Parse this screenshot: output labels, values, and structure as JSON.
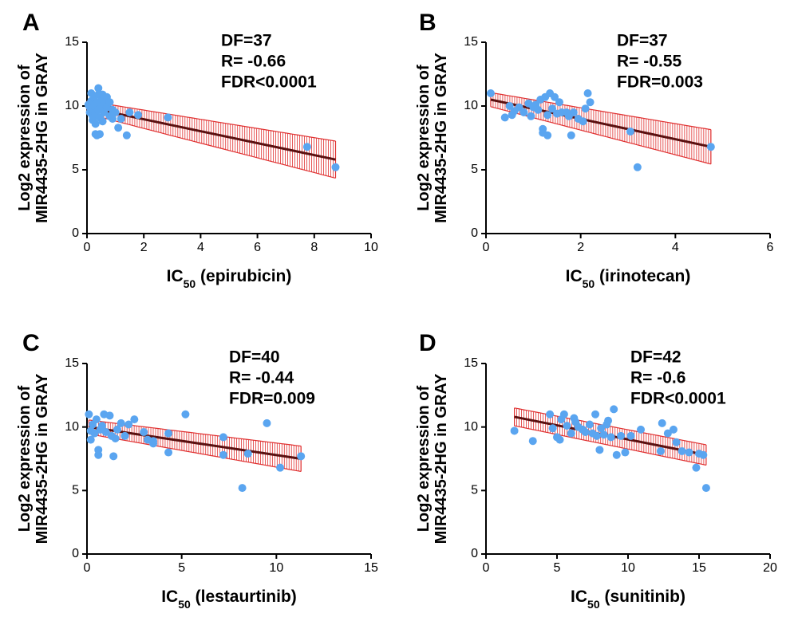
{
  "chart_data": [
    {
      "panel": "A",
      "type": "scatter",
      "xlabel_main": "IC",
      "xlabel_sub": "50",
      "xlabel_rest": " (epirubicin)",
      "ylabel_line1": "Log2 expression of",
      "ylabel_line2": "MIR4435-2HG in GRAY",
      "xlim": [
        0,
        10
      ],
      "xticks": [
        0,
        2,
        4,
        6,
        8,
        10
      ],
      "ylim": [
        0,
        15
      ],
      "yticks": [
        0,
        5,
        10,
        15
      ],
      "stats": [
        "DF=37",
        "R= -0.66",
        "FDR<0.0001"
      ],
      "fit": {
        "x1": 0.0,
        "y1": 9.9,
        "x2": 8.75,
        "y2": 5.8,
        "band1": 0.5,
        "band2": 1.45
      },
      "points": [
        [
          0.05,
          10.1
        ],
        [
          0.1,
          9.9
        ],
        [
          0.1,
          9.5
        ],
        [
          0.15,
          11.0
        ],
        [
          0.15,
          10.4
        ],
        [
          0.2,
          9.8
        ],
        [
          0.2,
          9.2
        ],
        [
          0.2,
          8.9
        ],
        [
          0.25,
          10.6
        ],
        [
          0.25,
          10.0
        ],
        [
          0.3,
          9.4
        ],
        [
          0.3,
          8.6
        ],
        [
          0.3,
          7.8
        ],
        [
          0.35,
          7.7
        ],
        [
          0.35,
          10.2
        ],
        [
          0.4,
          11.4
        ],
        [
          0.4,
          10.9
        ],
        [
          0.4,
          9.7
        ],
        [
          0.45,
          9.1
        ],
        [
          0.45,
          7.8
        ],
        [
          0.5,
          10.4
        ],
        [
          0.5,
          9.9
        ],
        [
          0.55,
          10.9
        ],
        [
          0.55,
          8.8
        ],
        [
          0.6,
          10.2
        ],
        [
          0.6,
          9.5
        ],
        [
          0.7,
          10.7
        ],
        [
          0.7,
          9.9
        ],
        [
          0.8,
          10.3
        ],
        [
          0.8,
          9.2
        ],
        [
          0.9,
          9.7
        ],
        [
          0.9,
          9.0
        ],
        [
          1.0,
          9.5
        ],
        [
          1.1,
          8.3
        ],
        [
          1.2,
          9.0
        ],
        [
          1.4,
          7.7
        ],
        [
          1.5,
          9.5
        ],
        [
          1.8,
          9.3
        ],
        [
          2.85,
          9.1
        ],
        [
          7.75,
          6.8
        ],
        [
          8.75,
          5.2
        ]
      ]
    },
    {
      "panel": "B",
      "type": "scatter",
      "xlabel_main": "IC",
      "xlabel_sub": "50",
      "xlabel_rest": " (irinotecan)",
      "ylabel_line1": "Log2 expression of",
      "ylabel_line2": "MIR4435-2HG in GRAY",
      "xlim": [
        0,
        6
      ],
      "xticks": [
        0,
        2,
        4,
        6
      ],
      "ylim": [
        0,
        15
      ],
      "yticks": [
        0,
        5,
        10,
        15
      ],
      "stats": [
        "DF=37",
        "R= -0.55",
        "FDR=0.003"
      ],
      "fit": {
        "x1": 0.1,
        "y1": 10.5,
        "x2": 4.75,
        "y2": 6.8,
        "band1": 0.55,
        "band2": 1.35
      },
      "points": [
        [
          0.1,
          11.0
        ],
        [
          0.4,
          9.1
        ],
        [
          0.5,
          10.0
        ],
        [
          0.55,
          9.3
        ],
        [
          0.6,
          9.6
        ],
        [
          0.7,
          9.9
        ],
        [
          0.8,
          9.5
        ],
        [
          0.9,
          10.2
        ],
        [
          0.95,
          9.2
        ],
        [
          1.0,
          9.9
        ],
        [
          1.05,
          10.1
        ],
        [
          1.1,
          9.7
        ],
        [
          1.15,
          10.5
        ],
        [
          1.2,
          8.2
        ],
        [
          1.2,
          7.9
        ],
        [
          1.25,
          10.7
        ],
        [
          1.3,
          7.7
        ],
        [
          1.3,
          9.3
        ],
        [
          1.35,
          11.0
        ],
        [
          1.4,
          9.8
        ],
        [
          1.45,
          10.7
        ],
        [
          1.5,
          9.4
        ],
        [
          1.55,
          10.3
        ],
        [
          1.6,
          9.5
        ],
        [
          1.7,
          9.5
        ],
        [
          1.75,
          9.2
        ],
        [
          1.8,
          7.7
        ],
        [
          1.85,
          9.5
        ],
        [
          1.95,
          9.0
        ],
        [
          2.05,
          8.8
        ],
        [
          2.1,
          9.8
        ],
        [
          2.15,
          11.0
        ],
        [
          2.2,
          10.3
        ],
        [
          3.05,
          8.0
        ],
        [
          3.2,
          5.2
        ],
        [
          4.75,
          6.8
        ]
      ]
    },
    {
      "panel": "C",
      "type": "scatter",
      "xlabel_main": "IC",
      "xlabel_sub": "50",
      "xlabel_rest": " (lestaurtinib)",
      "ylabel_line1": "Log2 expression of",
      "ylabel_line2": "MIR4435-2HG in GRAY",
      "xlim": [
        0,
        15
      ],
      "xticks": [
        0,
        5,
        10,
        15
      ],
      "ylim": [
        0,
        15
      ],
      "yticks": [
        0,
        5,
        10,
        15
      ],
      "stats": [
        "DF=40",
        "R= -0.44",
        "FDR=0.009"
      ],
      "fit": {
        "x1": 0.1,
        "y1": 10.0,
        "x2": 11.3,
        "y2": 7.5,
        "band1": 0.55,
        "band2": 1.0
      },
      "points": [
        [
          0.1,
          11.0
        ],
        [
          0.2,
          9.7
        ],
        [
          0.2,
          9.0
        ],
        [
          0.3,
          10.2
        ],
        [
          0.4,
          9.5
        ],
        [
          0.5,
          10.6
        ],
        [
          0.6,
          8.2
        ],
        [
          0.6,
          7.8
        ],
        [
          0.7,
          9.8
        ],
        [
          0.8,
          10.1
        ],
        [
          0.9,
          11.0
        ],
        [
          1.0,
          9.6
        ],
        [
          1.2,
          10.9
        ],
        [
          1.3,
          9.3
        ],
        [
          1.4,
          7.7
        ],
        [
          1.5,
          9.1
        ],
        [
          1.6,
          9.8
        ],
        [
          1.8,
          10.3
        ],
        [
          2.0,
          9.3
        ],
        [
          2.2,
          10.2
        ],
        [
          2.5,
          10.6
        ],
        [
          3.0,
          9.6
        ],
        [
          3.2,
          9.0
        ],
        [
          3.5,
          8.9
        ],
        [
          3.5,
          8.7
        ],
        [
          4.3,
          9.5
        ],
        [
          4.3,
          8.0
        ],
        [
          5.2,
          11.0
        ],
        [
          7.2,
          9.2
        ],
        [
          7.2,
          7.8
        ],
        [
          8.2,
          5.2
        ],
        [
          8.5,
          7.9
        ],
        [
          9.5,
          10.3
        ],
        [
          10.2,
          6.8
        ],
        [
          11.3,
          7.7
        ]
      ]
    },
    {
      "panel": "D",
      "type": "scatter",
      "xlabel_main": "IC",
      "xlabel_sub": "50",
      "xlabel_rest": " (sunitinib)",
      "ylabel_line1": "Log2 expression of",
      "ylabel_line2": "MIR4435-2HG in GRAY",
      "xlim": [
        0,
        20
      ],
      "xticks": [
        0,
        5,
        10,
        15,
        20
      ],
      "ylim": [
        0,
        15
      ],
      "yticks": [
        0,
        5,
        10,
        15
      ],
      "stats": [
        "DF=42",
        "R= -0.6",
        "FDR<0.0001"
      ],
      "fit": {
        "x1": 2.0,
        "y1": 10.8,
        "x2": 15.5,
        "y2": 7.8,
        "band1": 0.7,
        "band2": 0.8
      },
      "points": [
        [
          2.0,
          9.7
        ],
        [
          3.3,
          8.9
        ],
        [
          4.5,
          11.0
        ],
        [
          4.7,
          9.9
        ],
        [
          5.0,
          9.2
        ],
        [
          5.2,
          9.0
        ],
        [
          5.3,
          10.6
        ],
        [
          5.5,
          11.0
        ],
        [
          5.7,
          10.1
        ],
        [
          6.0,
          9.5
        ],
        [
          6.2,
          10.7
        ],
        [
          6.3,
          10.4
        ],
        [
          6.5,
          10.0
        ],
        [
          6.8,
          9.8
        ],
        [
          7.0,
          9.6
        ],
        [
          7.3,
          10.2
        ],
        [
          7.5,
          9.5
        ],
        [
          7.7,
          11.0
        ],
        [
          7.8,
          9.3
        ],
        [
          8.0,
          8.2
        ],
        [
          8.1,
          9.9
        ],
        [
          8.3,
          9.4
        ],
        [
          8.5,
          10.2
        ],
        [
          8.6,
          10.5
        ],
        [
          8.8,
          9.2
        ],
        [
          9.0,
          11.4
        ],
        [
          9.2,
          7.8
        ],
        [
          9.5,
          9.3
        ],
        [
          9.8,
          8.0
        ],
        [
          10.2,
          9.3
        ],
        [
          10.9,
          9.8
        ],
        [
          12.3,
          8.1
        ],
        [
          12.4,
          10.3
        ],
        [
          12.8,
          9.5
        ],
        [
          13.2,
          9.8
        ],
        [
          13.4,
          8.8
        ],
        [
          13.8,
          8.1
        ],
        [
          14.3,
          8.0
        ],
        [
          14.8,
          6.8
        ],
        [
          15.0,
          7.9
        ],
        [
          15.3,
          7.8
        ],
        [
          15.5,
          5.2
        ]
      ]
    }
  ]
}
